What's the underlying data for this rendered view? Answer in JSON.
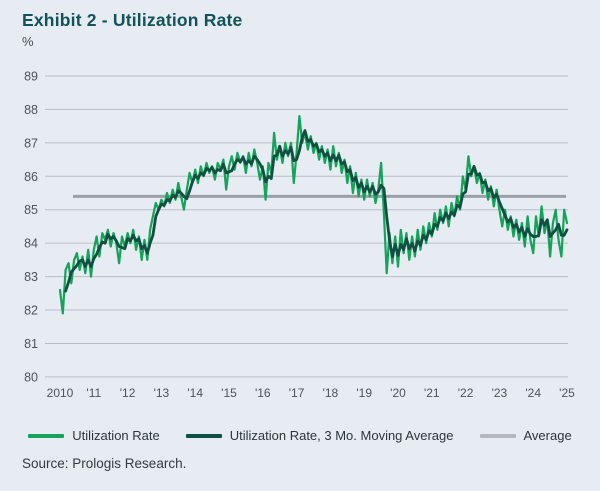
{
  "title": "Exhibit 2 - Utilization Rate",
  "y_unit": "%",
  "source": "Source: Prologis Research.",
  "colors": {
    "background": "#e7ebf2",
    "grid": "#b8bec8",
    "title_text": "#11535a",
    "axis_text": "#4d545c",
    "utilization_rate": "#14a35a",
    "moving_average": "#0e5140",
    "average_line": "#9aa0a8",
    "average_swatch": "#b4b8be"
  },
  "legend": [
    {
      "label": "Utilization Rate",
      "swatch_color": "#14a35a"
    },
    {
      "label": "Utilization Rate, 3 Mo. Moving Average",
      "swatch_color": "#0e5140"
    },
    {
      "label": "Average",
      "swatch_color": "#b4b8be"
    }
  ],
  "chart_data": {
    "type": "line",
    "title": "Exhibit 2 - Utilization Rate",
    "ylabel": "%",
    "ylim": [
      80,
      89
    ],
    "y_ticks": [
      89,
      88,
      87,
      86,
      85,
      84,
      83,
      82,
      81,
      80
    ],
    "x_tick_labels": [
      "2010",
      "'11",
      "'12",
      "'13",
      "'14",
      "'15",
      "'16",
      "'17",
      "'18",
      "'19",
      "'20",
      "'21",
      "'22",
      "'23",
      "'24",
      "'25"
    ],
    "frequency": "monthly",
    "start_period": "2010-01",
    "end_period": "2025-01",
    "grid": "horizontal",
    "legend_position": "bottom",
    "average_value": 85.4,
    "series": [
      {
        "name": "Utilization Rate",
        "values": [
          82.6,
          81.9,
          83.2,
          83.4,
          82.8,
          83.5,
          83.7,
          83.2,
          83.6,
          83.1,
          83.8,
          83.0,
          83.8,
          84.2,
          83.6,
          84.3,
          84.1,
          84.4,
          83.9,
          84.3,
          84.0,
          83.4,
          84.2,
          83.9,
          84.3,
          84.0,
          84.4,
          83.8,
          84.2,
          83.5,
          84.1,
          83.5,
          84.4,
          84.8,
          85.2,
          85.0,
          85.3,
          85.1,
          85.5,
          85.2,
          85.6,
          85.3,
          85.8,
          85.4,
          85.0,
          85.6,
          86.1,
          85.8,
          86.2,
          85.8,
          86.3,
          86.0,
          86.4,
          86.1,
          86.3,
          85.9,
          86.4,
          86.2,
          86.5,
          85.6,
          86.3,
          86.6,
          86.2,
          86.7,
          86.4,
          86.6,
          86.1,
          86.7,
          86.3,
          86.8,
          86.4,
          85.9,
          86.3,
          85.3,
          86.4,
          86.1,
          87.3,
          86.5,
          86.9,
          86.4,
          87.0,
          86.6,
          87.0,
          85.8,
          86.7,
          87.8,
          87.0,
          87.3,
          86.8,
          87.2,
          86.7,
          87.0,
          86.5,
          86.9,
          86.4,
          86.8,
          86.2,
          86.9,
          86.3,
          86.7,
          86.1,
          86.5,
          85.8,
          86.3,
          85.5,
          86.1,
          85.4,
          85.9,
          85.3,
          85.9,
          85.4,
          85.8,
          85.2,
          85.6,
          86.4,
          84.9,
          83.1,
          84.3,
          83.4,
          84.2,
          83.3,
          84.4,
          83.7,
          84.3,
          83.5,
          84.2,
          83.6,
          84.4,
          83.8,
          84.5,
          84.0,
          84.6,
          84.2,
          84.9,
          84.4,
          85.0,
          84.6,
          85.1,
          84.5,
          85.2,
          84.8,
          85.4,
          85.0,
          86.0,
          85.6,
          86.6,
          86.0,
          86.3,
          85.8,
          86.1,
          85.5,
          85.9,
          85.3,
          85.7,
          85.1,
          85.6,
          85.0,
          84.5,
          85.0,
          84.4,
          84.8,
          84.2,
          84.7,
          84.1,
          84.6,
          83.9,
          84.8,
          84.1,
          83.7,
          84.8,
          84.2,
          85.1,
          84.3,
          84.7,
          83.6,
          84.6,
          85.0,
          84.1,
          83.6,
          85.0,
          84.6
        ]
      },
      {
        "name": "Utilization Rate, 3 Mo. Moving Average",
        "derived_from": "Utilization Rate",
        "derivation": "3-month trailing moving average"
      },
      {
        "name": "Average",
        "constant": 85.4
      }
    ]
  }
}
